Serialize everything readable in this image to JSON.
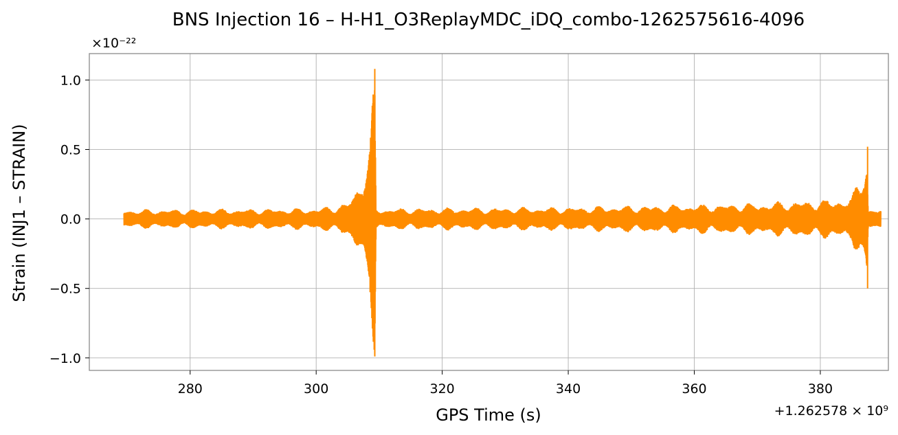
{
  "chart_data": {
    "type": "line",
    "title": "BNS Injection 16 – H-H1_O3ReplayMDC_iDQ_combo-1262575616-4096",
    "xlabel": "GPS Time (s)",
    "ylabel": "Strain (INJ1 – STRAIN)",
    "x_offset_label": "+1.262578 × 10⁹",
    "y_scale_label": "×10⁻²²",
    "xlim": [
      264,
      390.8
    ],
    "ylim": [
      -1.09,
      1.19
    ],
    "x_ticks": [
      280,
      300,
      320,
      340,
      360,
      380
    ],
    "x_tick_labels": [
      "280",
      "300",
      "320",
      "340",
      "360",
      "380"
    ],
    "y_ticks": [
      -1.0,
      -0.5,
      0.0,
      0.5,
      1.0
    ],
    "y_tick_labels": [
      "−1.0",
      "−0.5",
      "0.0",
      "0.5",
      "1.0"
    ],
    "grid": true,
    "series": [
      {
        "color": "#ff8c00",
        "x_range": [
          269.5,
          389.6
        ],
        "envelope": [
          {
            "x": 269.5,
            "amp": 0.07
          },
          {
            "x": 300.0,
            "amp": 0.08
          },
          {
            "x": 305.0,
            "amp": 0.12
          },
          {
            "x": 307.0,
            "amp": 0.3
          },
          {
            "x": 308.5,
            "amp": 0.55
          },
          {
            "x": 309.3,
            "amp": 1.08
          },
          {
            "x": 309.5,
            "amp": 0.08
          },
          {
            "x": 340.0,
            "amp": 0.09
          },
          {
            "x": 370.0,
            "amp": 0.12
          },
          {
            "x": 385.0,
            "amp": 0.16
          },
          {
            "x": 387.4,
            "amp": 0.52
          },
          {
            "x": 387.6,
            "amp": 0.07
          },
          {
            "x": 389.6,
            "amp": 0.07
          }
        ],
        "peaks": [
          {
            "x": 309.3,
            "max": 1.08,
            "min": -0.99
          },
          {
            "x": 387.5,
            "max": 0.52,
            "min": -0.5
          }
        ]
      }
    ]
  }
}
